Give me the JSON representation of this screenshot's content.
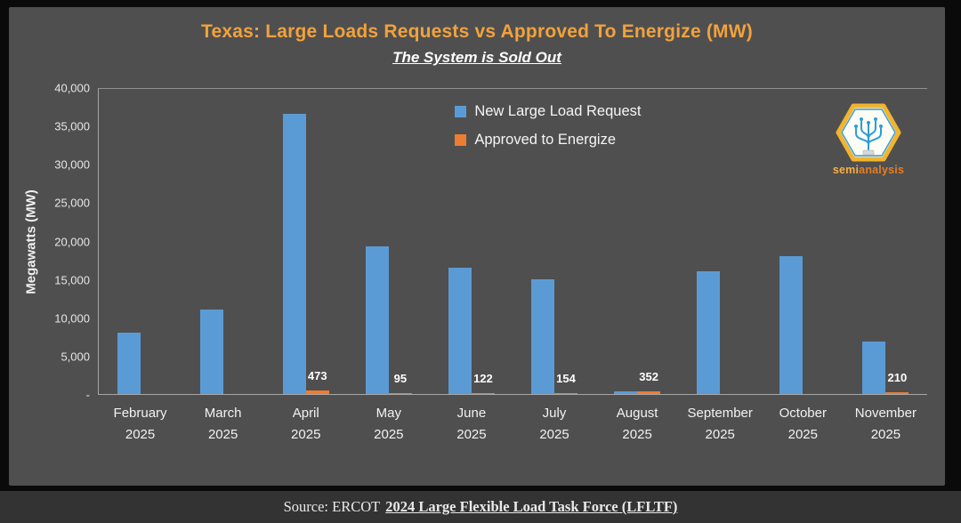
{
  "chart_data": {
    "type": "bar",
    "title": "Texas: Large Loads Requests vs Approved To Energize (MW)",
    "subtitle": "The System is Sold Out",
    "xlabel": "",
    "ylabel": "Megawatts (MW)",
    "ylim": [
      0,
      40000
    ],
    "grid": false,
    "legend_position": "top-center",
    "y_ticks": [
      "40,000",
      "35,000",
      "30,000",
      "25,000",
      "20,000",
      "15,000",
      "10,000",
      "5,000",
      "-"
    ],
    "categories": [
      "February 2025",
      "March 2025",
      "April 2025",
      "May 2025",
      "June 2025",
      "July 2025",
      "August 2025",
      "September 2025",
      "October 2025",
      "November 2025"
    ],
    "series": [
      {
        "name": "New Large Load Request",
        "color": "#5B9BD5",
        "values": [
          8000,
          11000,
          36500,
          19200,
          16500,
          15000,
          400,
          16000,
          18000,
          6900
        ]
      },
      {
        "name": "Approved to Energize",
        "color": "#ED7D31",
        "values": [
          0,
          0,
          473,
          95,
          122,
          154,
          352,
          0,
          0,
          210
        ],
        "labels": [
          "",
          "",
          "473",
          "95",
          "122",
          "154",
          "352",
          "",
          "",
          "210"
        ]
      }
    ]
  },
  "logo": {
    "text_primary": "semi",
    "text_secondary": "analysis"
  },
  "footer": {
    "prefix": "Source: ERCOT",
    "link": "2024 Large Flexible Load Task Force (LFLTF)"
  },
  "colors": {
    "page_bg": "#0a0a0a",
    "panel_bg": "#4f4f4f",
    "footer_bg": "#333333",
    "title": "#F2A23C",
    "axis": "#a6a6a6",
    "bar_blue": "#5B9BD5",
    "bar_orange": "#ED7D31",
    "logo_border": "#F2B32E",
    "logo_tree": "#2D9CDB",
    "logo_text_primary": "#F5B041",
    "logo_text_secondary": "#E67E22"
  }
}
